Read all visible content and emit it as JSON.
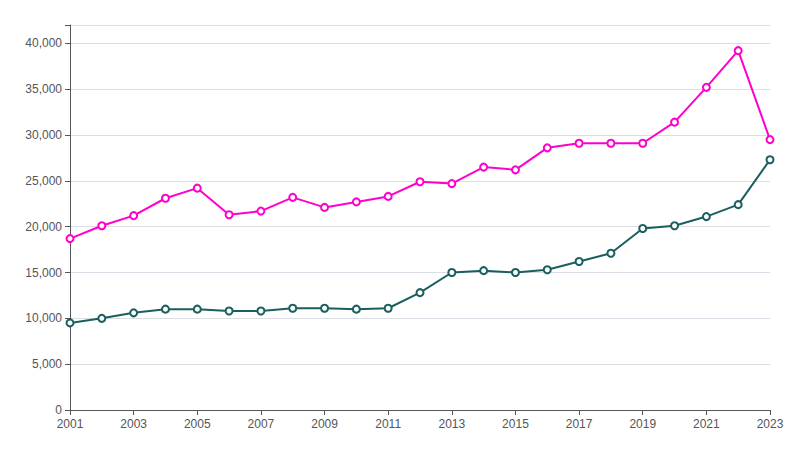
{
  "chart_data": {
    "type": "line",
    "x": [
      2001,
      2002,
      2003,
      2004,
      2005,
      2006,
      2007,
      2008,
      2009,
      2010,
      2011,
      2012,
      2013,
      2014,
      2015,
      2016,
      2017,
      2018,
      2019,
      2020,
      2021,
      2022,
      2023
    ],
    "series": [
      {
        "color": "#FF00CC",
        "values": [
          18700,
          20100,
          21200,
          23100,
          24200,
          21300,
          21700,
          23200,
          22100,
          22700,
          23300,
          24900,
          24700,
          26500,
          26200,
          28600,
          29100,
          29100,
          29100,
          31400,
          35200,
          39200,
          29500
        ]
      },
      {
        "color": "#1B5E5E",
        "values": [
          9500,
          10000,
          10600,
          11000,
          11000,
          10800,
          10800,
          11100,
          11100,
          11000,
          11100,
          12800,
          15000,
          15200,
          15000,
          15300,
          16200,
          17100,
          19800,
          20100,
          21100,
          22400,
          27300
        ]
      }
    ],
    "xlim": [
      2001,
      2023
    ],
    "xticks": [
      2001,
      2003,
      2005,
      2007,
      2009,
      2011,
      2013,
      2015,
      2017,
      2019,
      2021,
      2023
    ],
    "ylim": [
      0,
      42000
    ],
    "yticks": [
      0,
      {
        "value": 5000,
        "label": "5,000"
      },
      {
        "value": 10000,
        "label": "10,000"
      },
      {
        "value": 15000,
        "label": "15,000"
      },
      {
        "value": 20000,
        "label": "20,000"
      },
      {
        "value": 25000,
        "label": "25,000"
      },
      {
        "value": 30000,
        "label": "30,000"
      },
      {
        "value": 35000,
        "label": "35,000"
      },
      {
        "value": 40000,
        "label": "40,000"
      }
    ],
    "grid": true,
    "marker": "circle"
  }
}
